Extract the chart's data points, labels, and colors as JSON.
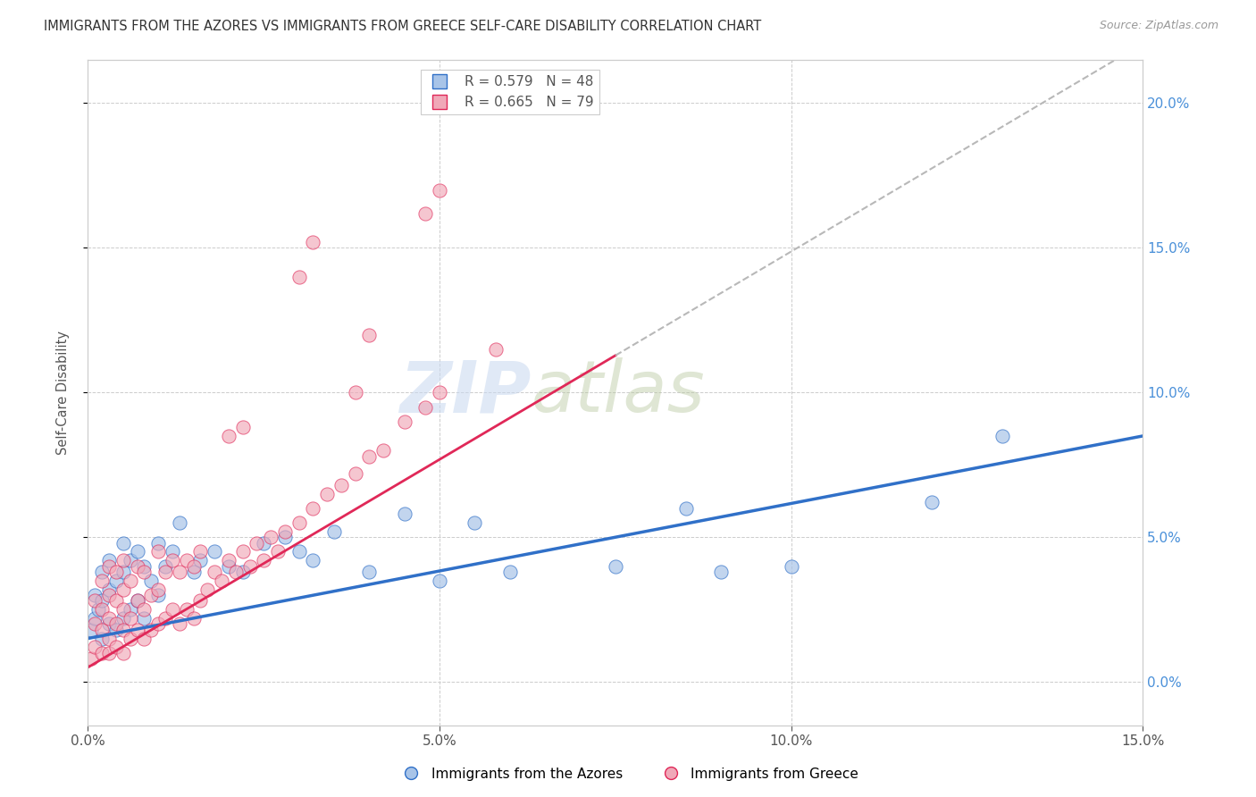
{
  "title": "IMMIGRANTS FROM THE AZORES VS IMMIGRANTS FROM GREECE SELF-CARE DISABILITY CORRELATION CHART",
  "source": "Source: ZipAtlas.com",
  "ylabel": "Self-Care Disability",
  "r_azores": 0.579,
  "n_azores": 48,
  "r_greece": 0.665,
  "n_greece": 79,
  "color_azores": "#a8c4e8",
  "color_greece": "#f0a8b8",
  "line_color_azores": "#3070c8",
  "line_color_greece": "#e02858",
  "dashed_line_color": "#b8b8b8",
  "xmin": 0.0,
  "xmax": 0.15,
  "ymin": -0.015,
  "ymax": 0.215,
  "watermark_zip": "ZIP",
  "watermark_atlas": "atlas",
  "azores_x": [
    0.0005,
    0.001,
    0.001,
    0.0015,
    0.002,
    0.002,
    0.002,
    0.003,
    0.003,
    0.003,
    0.004,
    0.004,
    0.005,
    0.005,
    0.005,
    0.006,
    0.006,
    0.007,
    0.007,
    0.008,
    0.008,
    0.009,
    0.01,
    0.01,
    0.011,
    0.012,
    0.013,
    0.015,
    0.016,
    0.018,
    0.02,
    0.022,
    0.025,
    0.028,
    0.03,
    0.032,
    0.035,
    0.04,
    0.045,
    0.05,
    0.055,
    0.06,
    0.075,
    0.085,
    0.09,
    0.1,
    0.12,
    0.13
  ],
  "azores_y": [
    0.018,
    0.022,
    0.03,
    0.025,
    0.015,
    0.028,
    0.038,
    0.02,
    0.032,
    0.042,
    0.018,
    0.035,
    0.022,
    0.038,
    0.048,
    0.025,
    0.042,
    0.028,
    0.045,
    0.022,
    0.04,
    0.035,
    0.03,
    0.048,
    0.04,
    0.045,
    0.055,
    0.038,
    0.042,
    0.045,
    0.04,
    0.038,
    0.048,
    0.05,
    0.045,
    0.042,
    0.052,
    0.038,
    0.058,
    0.035,
    0.055,
    0.038,
    0.04,
    0.06,
    0.038,
    0.04,
    0.062,
    0.085
  ],
  "greece_x": [
    0.0005,
    0.001,
    0.001,
    0.001,
    0.002,
    0.002,
    0.002,
    0.002,
    0.003,
    0.003,
    0.003,
    0.003,
    0.003,
    0.004,
    0.004,
    0.004,
    0.004,
    0.005,
    0.005,
    0.005,
    0.005,
    0.005,
    0.006,
    0.006,
    0.006,
    0.007,
    0.007,
    0.007,
    0.008,
    0.008,
    0.008,
    0.009,
    0.009,
    0.01,
    0.01,
    0.01,
    0.011,
    0.011,
    0.012,
    0.012,
    0.013,
    0.013,
    0.014,
    0.014,
    0.015,
    0.015,
    0.016,
    0.016,
    0.017,
    0.018,
    0.019,
    0.02,
    0.021,
    0.022,
    0.023,
    0.024,
    0.025,
    0.026,
    0.027,
    0.028,
    0.03,
    0.032,
    0.034,
    0.036,
    0.038,
    0.04,
    0.042,
    0.045,
    0.048,
    0.05,
    0.02,
    0.022,
    0.03,
    0.032,
    0.038,
    0.04,
    0.048,
    0.05,
    0.058
  ],
  "greece_y": [
    0.008,
    0.012,
    0.02,
    0.028,
    0.01,
    0.018,
    0.025,
    0.035,
    0.01,
    0.015,
    0.022,
    0.03,
    0.04,
    0.012,
    0.02,
    0.028,
    0.038,
    0.01,
    0.018,
    0.025,
    0.032,
    0.042,
    0.015,
    0.022,
    0.035,
    0.018,
    0.028,
    0.04,
    0.015,
    0.025,
    0.038,
    0.018,
    0.03,
    0.02,
    0.032,
    0.045,
    0.022,
    0.038,
    0.025,
    0.042,
    0.02,
    0.038,
    0.025,
    0.042,
    0.022,
    0.04,
    0.028,
    0.045,
    0.032,
    0.038,
    0.035,
    0.042,
    0.038,
    0.045,
    0.04,
    0.048,
    0.042,
    0.05,
    0.045,
    0.052,
    0.055,
    0.06,
    0.065,
    0.068,
    0.072,
    0.078,
    0.08,
    0.09,
    0.095,
    0.1,
    0.085,
    0.088,
    0.14,
    0.152,
    0.1,
    0.12,
    0.162,
    0.17,
    0.115
  ]
}
